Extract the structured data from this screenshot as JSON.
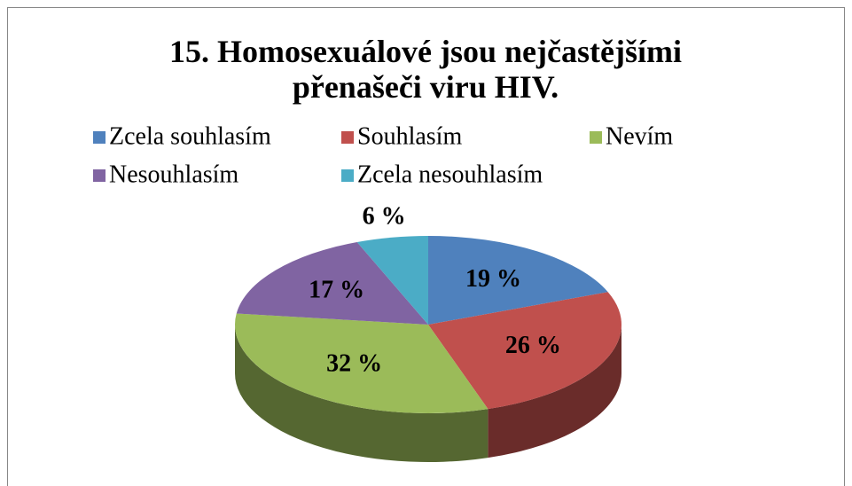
{
  "chart_data": {
    "type": "pie",
    "title": "15. Homosexuálové jsou nejčastějšími přenašeči viru HIV.",
    "categories": [
      "Zcela souhlasím",
      "Souhlasím",
      "Nevím",
      "Nesouhlasím",
      "Zcela nesouhlasím"
    ],
    "values": [
      19,
      26,
      32,
      17,
      6
    ],
    "value_labels": [
      "19 %",
      "26 %",
      "32 %",
      "17 %",
      "6 %"
    ],
    "colors": [
      "#4f81bd",
      "#c0504d",
      "#9bbb59",
      "#8064a2",
      "#4bacc6"
    ],
    "legend": "top"
  }
}
